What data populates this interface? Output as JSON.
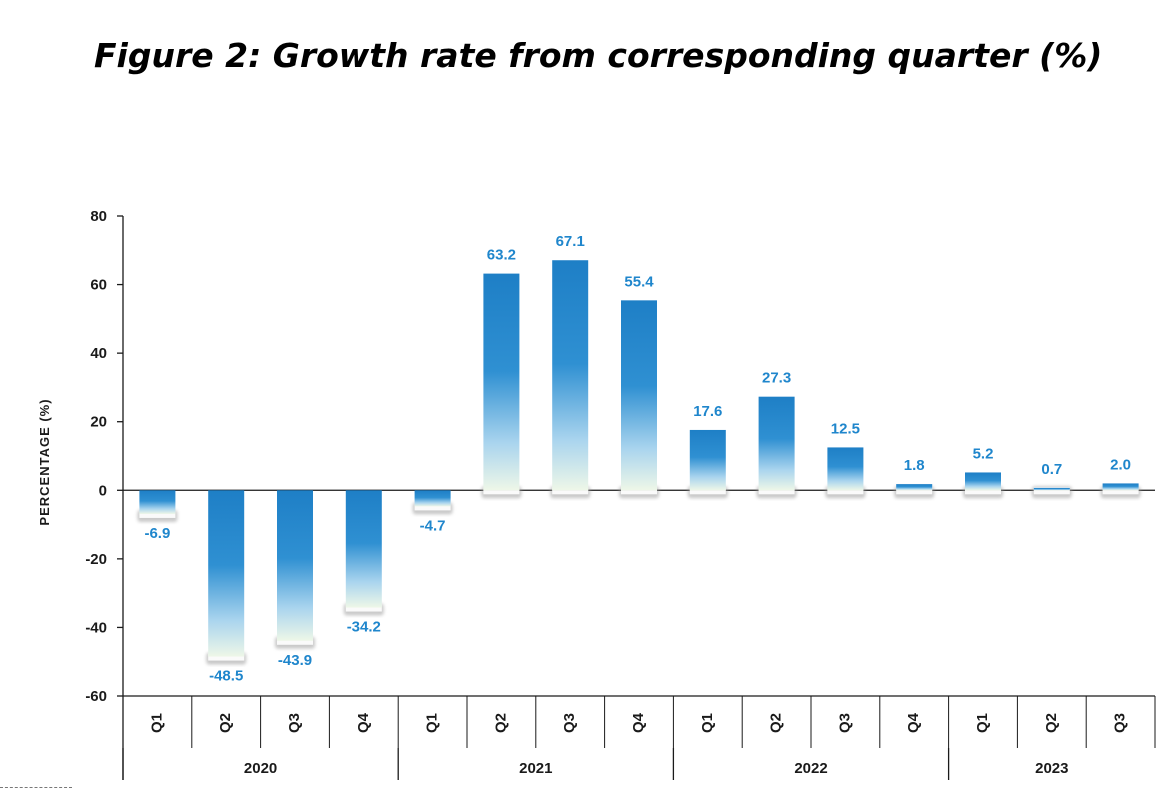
{
  "title": "Figure 2: Growth rate from corresponding quarter (%)",
  "chart_data": {
    "type": "bar",
    "title": "Figure 2: Growth rate from corresponding quarter (%)",
    "xlabel": "",
    "ylabel": "PERCENTAGE  (%)",
    "ylim": [
      -60,
      80
    ],
    "yticks": [
      80,
      60,
      40,
      20,
      0,
      -20,
      -40,
      -60
    ],
    "ytick_labels": [
      "80",
      "60",
      "40",
      "20",
      "0",
      "-20",
      "-40",
      "-60"
    ],
    "categories": [
      "Q1",
      "Q2",
      "Q3",
      "Q4",
      "Q1",
      "Q2",
      "Q3",
      "Q4",
      "Q1",
      "Q2",
      "Q3",
      "Q4",
      "Q1",
      "Q2",
      "Q3"
    ],
    "groups": [
      {
        "label": "2020",
        "count": 4
      },
      {
        "label": "2021",
        "count": 4
      },
      {
        "label": "2022",
        "count": 4
      },
      {
        "label": "2023",
        "count": 3
      }
    ],
    "values": [
      -6.9,
      -48.5,
      -43.9,
      -34.2,
      -4.7,
      63.2,
      67.1,
      55.4,
      17.6,
      27.3,
      12.5,
      1.8,
      5.2,
      0.7,
      2.0
    ],
    "value_labels": [
      "-6.9",
      "-48.5",
      "-43.9",
      "-34.2",
      "-4.7",
      "63.2",
      "67.1",
      "55.4",
      "17.6",
      "27.3",
      "12.5",
      "1.8",
      "5.2",
      "0.7",
      "2.0"
    ],
    "grid": false,
    "legend": "none",
    "colors": {
      "bar_top": "#1e7fc6",
      "bar_bottom": "#eef7e8",
      "label": "#1f86cc",
      "axis": "#1a1a1a"
    }
  }
}
